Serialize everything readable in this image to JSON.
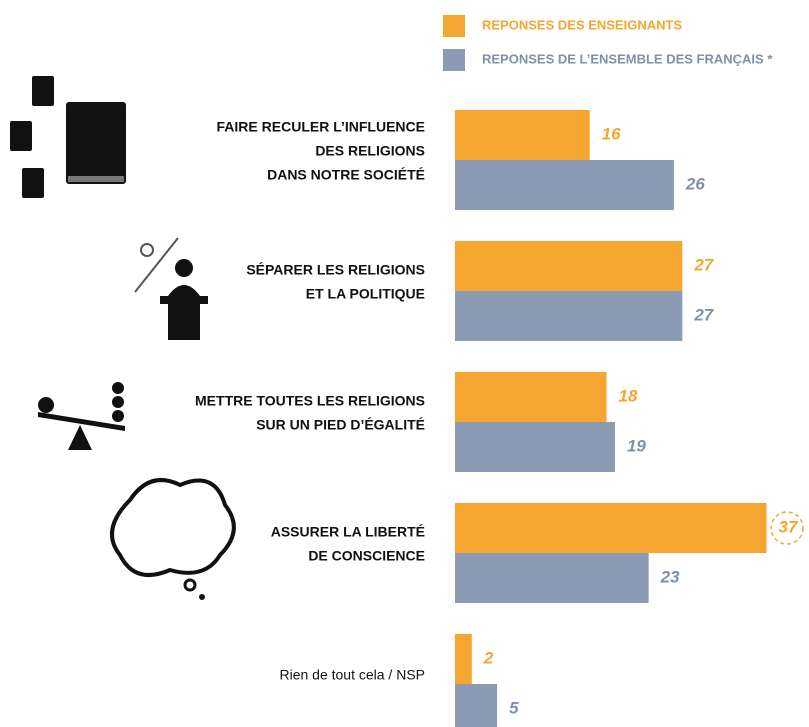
{
  "chart_data": {
    "type": "bar",
    "orientation": "horizontal",
    "categories": [
      [
        "FAIRE RECULER L’INFLUENCE",
        "DES RELIGIONS",
        "DANS NOTRE SOCIÉTÉ"
      ],
      [
        "SÉPARER LES RELIGIONS",
        "ET LA POLITIQUE"
      ],
      [
        "METTRE TOUTES LES RELIGIONS",
        "SUR UN PIED D’ÉGALITÉ"
      ],
      [
        "ASSURER LA LIBERTÉ",
        "DE CONSCIENCE"
      ],
      [
        "Rien de tout cela / NSP"
      ]
    ],
    "series": [
      {
        "name": "REPONSES DES ENSEIGNANTS",
        "color": "#f5a631",
        "values": [
          16,
          27,
          18,
          37,
          2
        ]
      },
      {
        "name": "REPONSES DE L’ENSEMBLE DES FRANÇAIS *",
        "color": "#8a9bb3",
        "values": [
          26,
          27,
          19,
          23,
          5
        ]
      }
    ]
  }
}
